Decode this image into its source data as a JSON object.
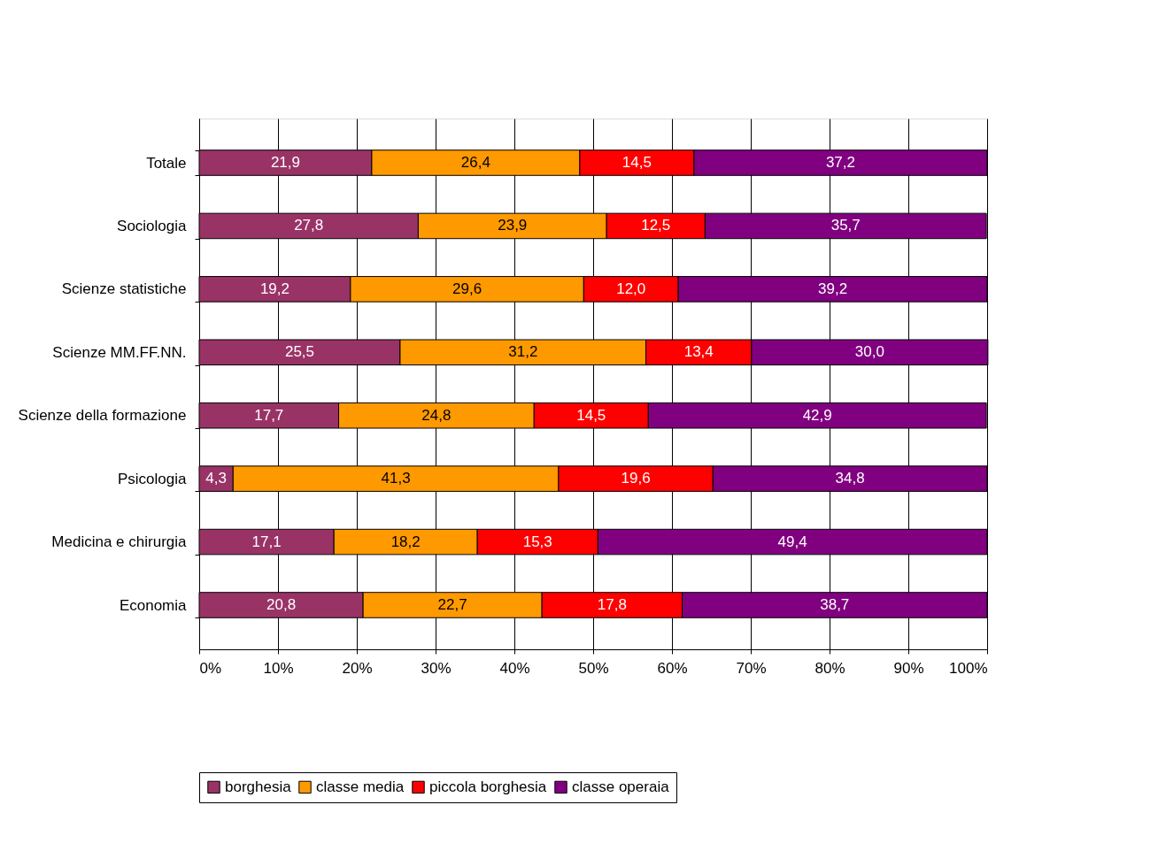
{
  "chart_data": {
    "type": "bar",
    "orientation": "horizontal",
    "stacked": true,
    "categories": [
      "Totale",
      "Sociologia",
      "Scienze statistiche",
      "Scienze MM.FF.NN.",
      "Scienze della formazione",
      "Psicologia",
      "Medicina e chirurgia",
      "Economia"
    ],
    "series": [
      {
        "name": "borghesia",
        "color": "#993366",
        "values": [
          21.9,
          27.8,
          19.2,
          25.5,
          17.7,
          4.3,
          17.1,
          20.8
        ],
        "value_labels": [
          "21,9",
          "27,8",
          "19,2",
          "25,5",
          "17,7",
          "4,3",
          "17,1",
          "20,8"
        ]
      },
      {
        "name": "classe media",
        "color": "#ff9900",
        "values": [
          26.4,
          23.9,
          29.6,
          31.2,
          24.8,
          41.3,
          18.2,
          22.7
        ],
        "value_labels": [
          "26,4",
          "23,9",
          "29,6",
          "31,2",
          "24,8",
          "41,3",
          "18,2",
          "22,7"
        ]
      },
      {
        "name": "piccola borghesia",
        "color": "#ff0000",
        "values": [
          14.5,
          12.5,
          12.0,
          13.4,
          14.5,
          19.6,
          15.3,
          17.8
        ],
        "value_labels": [
          "14,5",
          "12,5",
          "12,0",
          "13,4",
          "14,5",
          "19,6",
          "15,3",
          "17,8"
        ]
      },
      {
        "name": "classe operaia",
        "color": "#800080",
        "values": [
          37.2,
          35.7,
          39.2,
          30.0,
          42.9,
          34.8,
          49.4,
          38.7
        ],
        "value_labels": [
          "37,2",
          "35,7",
          "39,2",
          "30,0",
          "42,9",
          "34,8",
          "49,4",
          "38,7"
        ]
      }
    ],
    "xlim": [
      0,
      100
    ],
    "xticks": [
      {
        "value": 0,
        "label": "0%"
      },
      {
        "value": 10,
        "label": "10%"
      },
      {
        "value": 20,
        "label": "20%"
      },
      {
        "value": 30,
        "label": "30%"
      },
      {
        "value": 40,
        "label": "40%"
      },
      {
        "value": 50,
        "label": "50%"
      },
      {
        "value": 60,
        "label": "60%"
      },
      {
        "value": 70,
        "label": "70%"
      },
      {
        "value": 80,
        "label": "80%"
      },
      {
        "value": 90,
        "label": "90%"
      },
      {
        "value": 100,
        "label": "100%"
      }
    ],
    "grid": "x",
    "legend": "bottom"
  }
}
